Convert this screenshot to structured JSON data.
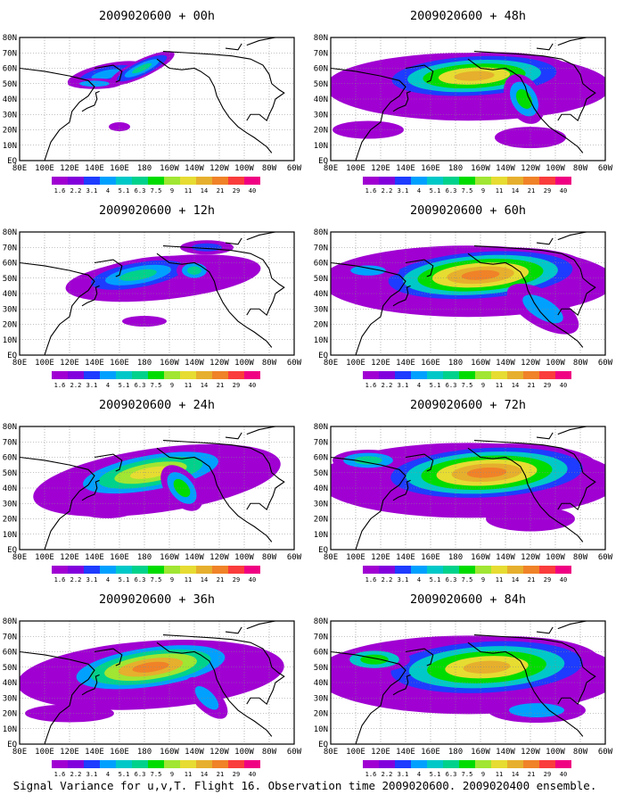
{
  "lat_labels": [
    "EQ",
    "10N",
    "20N",
    "30N",
    "40N",
    "50N",
    "60N",
    "70N",
    "80N"
  ],
  "lon_labels": [
    "80E",
    "100E",
    "120E",
    "140E",
    "160E",
    "180",
    "160W",
    "140W",
    "120W",
    "100W",
    "80W",
    "60W"
  ],
  "colorbar": {
    "levels": [
      "1.6",
      "2.2",
      "3.1",
      "4",
      "5.1",
      "6.3",
      "7.5",
      "9",
      "11",
      "14",
      "21",
      "29",
      "40"
    ],
    "colors": [
      "#a000d2",
      "#8200dc",
      "#1e3cff",
      "#00a0ff",
      "#00c8c8",
      "#00d28c",
      "#00dc00",
      "#a0e632",
      "#e6dc32",
      "#e6af2d",
      "#f08228",
      "#fa3c3c",
      "#f00082"
    ]
  },
  "panels": [
    {
      "title": "2009020600 + 00h",
      "lead": "00h"
    },
    {
      "title": "2009020600 + 48h",
      "lead": "48h"
    },
    {
      "title": "2009020600 + 12h",
      "lead": "12h"
    },
    {
      "title": "2009020600 + 60h",
      "lead": "60h"
    },
    {
      "title": "2009020600 + 24h",
      "lead": "24h"
    },
    {
      "title": "2009020600 + 72h",
      "lead": "72h"
    },
    {
      "title": "2009020600 + 36h",
      "lead": "36h"
    },
    {
      "title": "2009020600 + 84h",
      "lead": "84h"
    }
  ],
  "footer": "Signal Variance for u,v,T. Flight 16. Observation time 2009020600. 2009020400 ensemble."
}
